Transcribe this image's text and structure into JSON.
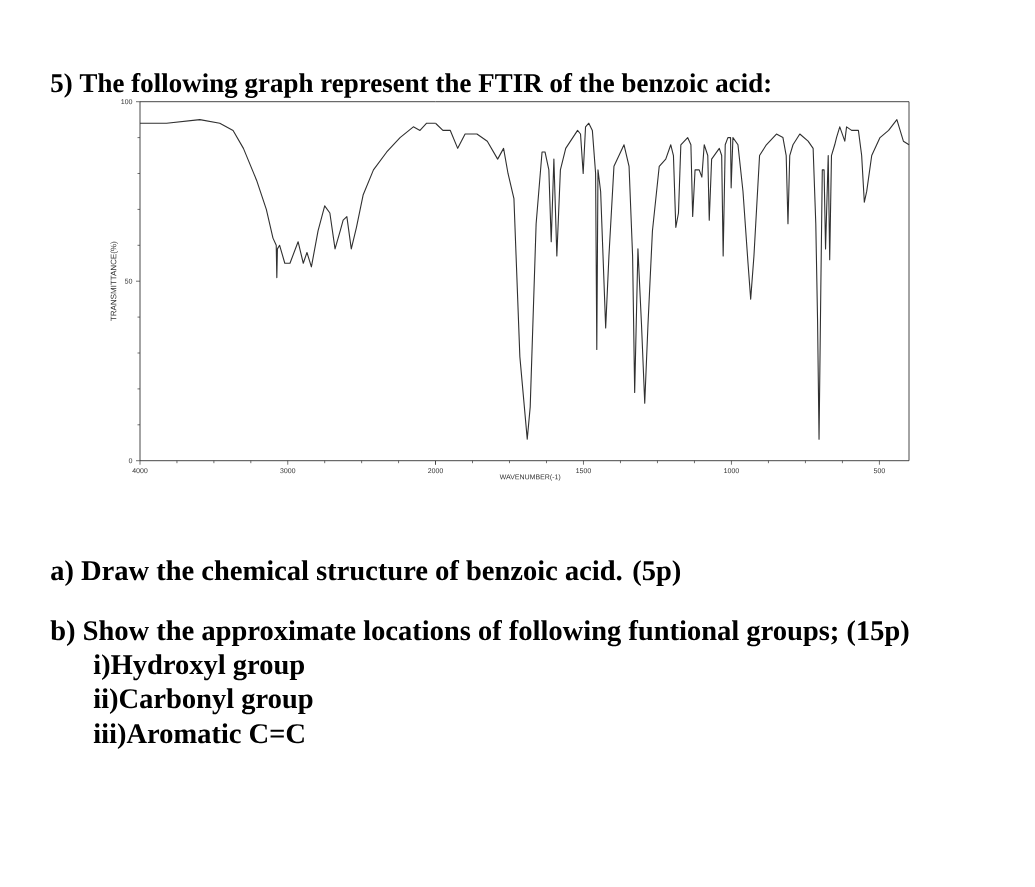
{
  "chart_data": [
    {
      "type": "line",
      "title": "5) The following graph represent the FTIR of the benzoic acid:",
      "ylabel": "TRANSMITTANCE(%)",
      "x": [
        4000,
        3820,
        3595,
        3460,
        3370,
        3300,
        3210,
        3145,
        3100,
        3078,
        3074,
        3070,
        3055,
        3020,
        2985,
        2930,
        2895,
        2870,
        2840,
        2795,
        2750,
        2715,
        2680,
        2645,
        2625,
        2600,
        2570,
        2535,
        2490,
        2420,
        2330,
        2240,
        2150,
        2105,
        2060,
        2015,
        2000
      ],
      "values": [
        94,
        94,
        95,
        94,
        92,
        87,
        78,
        70,
        62,
        60,
        51,
        59,
        60,
        55,
        55,
        61,
        55,
        58,
        54,
        64,
        71,
        69,
        59,
        64,
        67,
        68,
        59,
        65,
        74,
        81,
        86,
        90,
        93,
        92,
        94,
        94,
        94
      ],
      "color": "#303030",
      "xlim": [
        4000,
        2000
      ],
      "ylim": [
        0,
        100
      ],
      "xticks": [
        4000,
        3000,
        2000
      ],
      "yticks": [
        0,
        50,
        100
      ],
      "annotations": [
        "a) Draw the chemical structure of benzoic acid. (5p)",
        "b) Show the approximate locations of following funtional groups; (15p)",
        "i)Hydroxyl group",
        "ii)Carbonyl group",
        "iii)Aromatic C=C"
      ]
    },
    {
      "type": "line",
      "xlabel": "WAVENUMBER(-1)",
      "x": [
        2000,
        1975,
        1950,
        1925,
        1900,
        1860,
        1825,
        1790,
        1770,
        1755,
        1735,
        1715,
        1690,
        1680,
        1660,
        1640,
        1630,
        1617,
        1609,
        1600,
        1590,
        1578,
        1560,
        1520,
        1510,
        1501,
        1493,
        1482,
        1470,
        1459,
        1455,
        1451,
        1442,
        1425,
        1414,
        1397,
        1380,
        1363,
        1346,
        1334,
        1327,
        1316,
        1304,
        1293,
        1282,
        1267,
        1244,
        1222,
        1205,
        1196,
        1188,
        1179,
        1171,
        1148,
        1137,
        1131,
        1123,
        1109,
        1100,
        1092,
        1080,
        1075,
        1067,
        1041,
        1033,
        1028,
        1021,
        1012,
        1003,
        1001,
        995,
        978,
        961,
        944,
        935,
        924,
        905,
        882,
        848,
        826,
        815,
        809,
        803,
        792,
        769,
        741,
        724,
        715,
        709,
        704,
        698,
        693,
        687,
        682,
        673,
        668,
        662,
        651,
        645,
        634,
        617,
        611,
        594,
        571,
        560,
        551,
        543,
        526,
        498,
        469,
        441,
        419,
        400
      ],
      "values": [
        94,
        92,
        92,
        87,
        91,
        91,
        89,
        84,
        87,
        80,
        73,
        29,
        6,
        15,
        66,
        86,
        86,
        81,
        61,
        84,
        57,
        81,
        87,
        92,
        91,
        80,
        93,
        94,
        92,
        80,
        31,
        81,
        75,
        37,
        57,
        82,
        85,
        88,
        82,
        57,
        19,
        59,
        38,
        16,
        38,
        64,
        82,
        84,
        88,
        85,
        65,
        69,
        88,
        90,
        88,
        68,
        81,
        81,
        79,
        88,
        85,
        67,
        84,
        87,
        85,
        57,
        88,
        90,
        90,
        76,
        90,
        88,
        75,
        55,
        45,
        57,
        85,
        88,
        91,
        90,
        85,
        66,
        85,
        88,
        91,
        89,
        87,
        66,
        39,
        6,
        48,
        81,
        81,
        59,
        85,
        56,
        85,
        88,
        90,
        93,
        89,
        93,
        92,
        92,
        85,
        72,
        75,
        85,
        90,
        92,
        95,
        89,
        88
      ],
      "color": "#303030",
      "xlim": [
        2000,
        400
      ],
      "ylim": [
        0,
        100
      ],
      "xticks": [
        {
          "value": 2000,
          "label": null
        },
        1500,
        1000,
        500
      ],
      "tick_labels": "x"
    }
  ]
}
